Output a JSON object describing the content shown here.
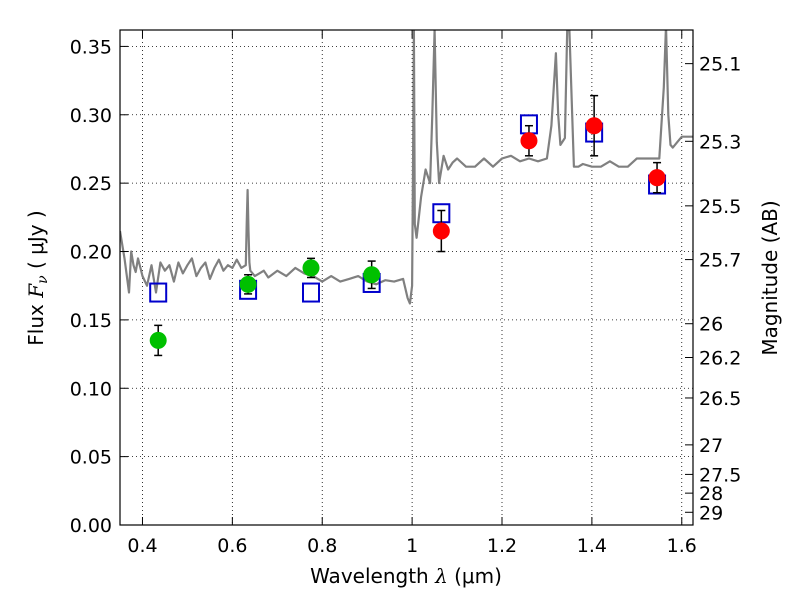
{
  "chart_data": {
    "type": "scatter",
    "xlabel_prefix": "Wavelength",
    "xlabel_symbol": "λ",
    "xlabel_unit": "(μm)",
    "ylabel_prefix": "Flux",
    "ylabel_symbol": "F",
    "ylabel_sub": "ν",
    "ylabel_unit": "( μJy )",
    "y2label": "Magnitude (AB)",
    "xlim": [
      0.35,
      1.625
    ],
    "ylim": [
      0.0,
      0.362
    ],
    "grid": true,
    "x_ticks": [
      0.4,
      0.6,
      0.8,
      1.0,
      1.2,
      1.4,
      1.6
    ],
    "x_tick_labels": [
      "0.4",
      "0.6",
      "0.8",
      "1",
      "1.2",
      "1.4",
      "1.6"
    ],
    "y_ticks": [
      0.0,
      0.05,
      0.1,
      0.15,
      0.2,
      0.25,
      0.3,
      0.35
    ],
    "y_tick_labels": [
      "0.00",
      "0.05",
      "0.10",
      "0.15",
      "0.20",
      "0.25",
      "0.30",
      "0.35"
    ],
    "mag_ticks": [
      {
        "label": "25.1",
        "flux": 0.3374
      },
      {
        "label": "25.3",
        "flux": 0.2806
      },
      {
        "label": "25.5",
        "flux": 0.2334
      },
      {
        "label": "25.7",
        "flux": 0.1941
      },
      {
        "label": "26",
        "flux": 0.1472
      },
      {
        "label": "26.2",
        "flux": 0.1225
      },
      {
        "label": "26.5",
        "flux": 0.0929
      },
      {
        "label": "27",
        "flux": 0.0586
      },
      {
        "label": "27.5",
        "flux": 0.037
      },
      {
        "label": "28",
        "flux": 0.0233
      },
      {
        "label": "29",
        "flux": 0.0093
      }
    ],
    "series": [
      {
        "style": "line",
        "color": "#808080",
        "x": [
          0.35,
          0.36,
          0.37,
          0.375,
          0.38,
          0.385,
          0.39,
          0.4,
          0.41,
          0.42,
          0.43,
          0.44,
          0.45,
          0.46,
          0.47,
          0.48,
          0.49,
          0.5,
          0.51,
          0.52,
          0.53,
          0.54,
          0.55,
          0.56,
          0.57,
          0.58,
          0.59,
          0.6,
          0.61,
          0.62,
          0.63,
          0.632,
          0.634,
          0.636,
          0.638,
          0.64,
          0.65,
          0.66,
          0.67,
          0.68,
          0.7,
          0.72,
          0.74,
          0.76,
          0.78,
          0.8,
          0.82,
          0.84,
          0.86,
          0.88,
          0.9,
          0.92,
          0.94,
          0.96,
          0.98,
          0.99,
          0.995,
          1.0,
          1.002,
          1.004,
          1.006,
          1.01,
          1.02,
          1.03,
          1.04,
          1.045,
          1.05,
          1.055,
          1.06,
          1.07,
          1.08,
          1.09,
          1.1,
          1.12,
          1.14,
          1.16,
          1.18,
          1.2,
          1.22,
          1.24,
          1.26,
          1.28,
          1.3,
          1.31,
          1.32,
          1.325,
          1.33,
          1.34,
          1.345,
          1.35,
          1.36,
          1.37,
          1.38,
          1.4,
          1.42,
          1.44,
          1.46,
          1.48,
          1.5,
          1.52,
          1.54,
          1.55,
          1.56,
          1.565,
          1.57,
          1.575,
          1.58,
          1.59,
          1.6,
          1.625
        ],
        "y": [
          0.215,
          0.195,
          0.17,
          0.2,
          0.19,
          0.185,
          0.195,
          0.182,
          0.175,
          0.19,
          0.17,
          0.192,
          0.186,
          0.19,
          0.178,
          0.192,
          0.184,
          0.19,
          0.195,
          0.182,
          0.188,
          0.192,
          0.18,
          0.188,
          0.194,
          0.186,
          0.19,
          0.188,
          0.194,
          0.188,
          0.19,
          0.22,
          0.245,
          0.215,
          0.192,
          0.186,
          0.182,
          0.184,
          0.186,
          0.181,
          0.186,
          0.182,
          0.188,
          0.184,
          0.182,
          0.178,
          0.182,
          0.178,
          0.18,
          0.182,
          0.178,
          0.176,
          0.179,
          0.178,
          0.18,
          0.166,
          0.162,
          0.175,
          0.26,
          0.362,
          0.22,
          0.21,
          0.24,
          0.26,
          0.25,
          0.3,
          0.362,
          0.28,
          0.25,
          0.27,
          0.26,
          0.265,
          0.268,
          0.262,
          0.262,
          0.268,
          0.262,
          0.268,
          0.27,
          0.266,
          0.268,
          0.266,
          0.268,
          0.292,
          0.345,
          0.3,
          0.278,
          0.283,
          0.362,
          0.362,
          0.262,
          0.262,
          0.264,
          0.262,
          0.262,
          0.266,
          0.262,
          0.262,
          0.268,
          0.268,
          0.268,
          0.268,
          0.32,
          0.365,
          0.3,
          0.278,
          0.276,
          0.28,
          0.284,
          0.284
        ]
      },
      {
        "style": "open-square",
        "color": "#0000cc",
        "x": [
          0.435,
          0.635,
          0.775,
          0.91,
          1.065,
          1.26,
          1.405,
          1.545
        ],
        "y": [
          0.17,
          0.172,
          0.17,
          0.177,
          0.228,
          0.293,
          0.287,
          0.249
        ]
      },
      {
        "style": "filled-circle-errorbar",
        "color": "#00c000",
        "x": [
          0.435,
          0.635,
          0.775,
          0.91
        ],
        "y": [
          0.135,
          0.176,
          0.188,
          0.183
        ],
        "err": [
          0.011,
          0.007,
          0.007,
          0.01
        ]
      },
      {
        "style": "filled-circle-errorbar",
        "color": "#ff0000",
        "x": [
          1.065,
          1.26,
          1.405,
          1.545
        ],
        "y": [
          0.215,
          0.281,
          0.292,
          0.254
        ],
        "err": [
          0.015,
          0.011,
          0.022,
          0.011
        ]
      }
    ]
  }
}
